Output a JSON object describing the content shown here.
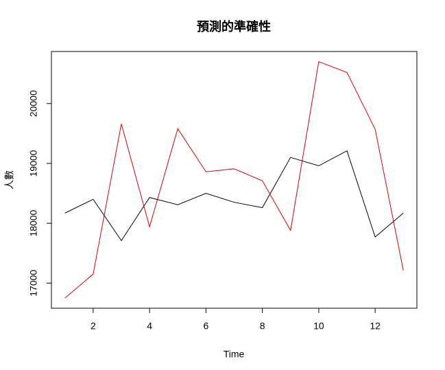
{
  "chart_data": {
    "type": "line",
    "title": "預測的準確性",
    "x_label": "Time",
    "y_label": "人數",
    "x": [
      1,
      2,
      3,
      4,
      5,
      6,
      7,
      8,
      9,
      10,
      11,
      12,
      13
    ],
    "series": [
      {
        "color": "#000000",
        "values": [
          18170,
          18400,
          17710,
          18430,
          18310,
          18500,
          18350,
          18260,
          19100,
          18960,
          19210,
          17770,
          18170
        ]
      },
      {
        "color": "#dd0000",
        "values": [
          16750,
          17150,
          19660,
          17940,
          19580,
          18860,
          18910,
          18710,
          17880,
          20700,
          20520,
          19570,
          17210
        ]
      }
    ],
    "xlim": [
      0.52,
      13.48
    ],
    "xticks": [
      2,
      4,
      6,
      8,
      10,
      12
    ],
    "ylim": [
      16580,
      20870
    ],
    "yticks": [
      17000,
      18000,
      19000,
      20000
    ],
    "grid": false
  }
}
